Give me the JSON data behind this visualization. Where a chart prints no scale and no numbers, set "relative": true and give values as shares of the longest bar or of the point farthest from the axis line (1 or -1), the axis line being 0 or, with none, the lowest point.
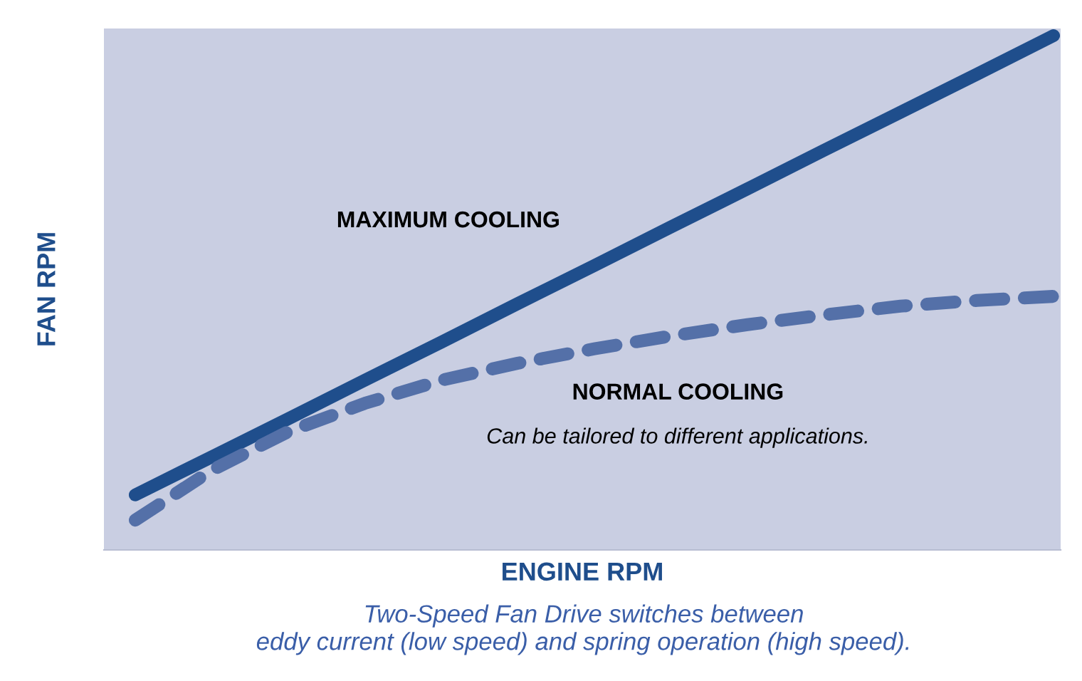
{
  "chart_data": {
    "type": "line",
    "relative": true,
    "xlabel": "ENGINE RPM",
    "ylabel": "FAN RPM",
    "categories": [
      null,
      null,
      null,
      null,
      null,
      null,
      null,
      null,
      null,
      null,
      null,
      null,
      null
    ],
    "series": [
      {
        "name": "MAXIMUM COOLING",
        "color": "#1f4e8c",
        "line_style": "solid",
        "values": [
          0.107,
          0.181,
          0.255,
          0.33,
          0.404,
          0.479,
          0.553,
          0.628,
          0.702,
          0.777,
          0.851,
          0.925,
          1.0
        ]
      },
      {
        "name": "NORMAL COOLING",
        "color": "#5470a8",
        "line_style": "dashed",
        "values": [
          0.058,
          0.155,
          0.23,
          0.285,
          0.33,
          0.363,
          0.391,
          0.416,
          0.438,
          0.457,
          0.474,
          0.485,
          0.493
        ]
      }
    ],
    "annotations": [
      "Can be tailored to different applications.",
      "Two-Speed Fan Drive switches between\neddy current (low speed) and spring operation (high speed)."
    ],
    "legend": false,
    "marker": "none"
  }
}
